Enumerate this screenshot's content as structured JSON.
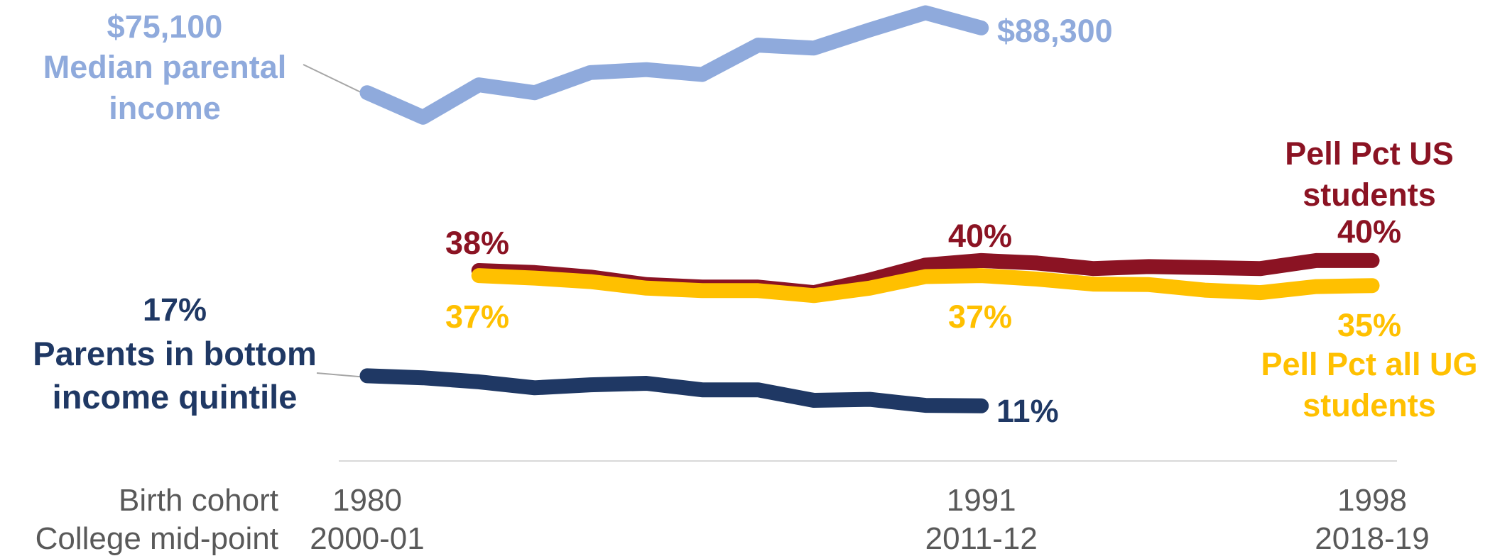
{
  "chart_data": {
    "type": "line",
    "x": [
      1980,
      1981,
      1982,
      1983,
      1984,
      1985,
      1986,
      1987,
      1988,
      1989,
      1990,
      1991,
      1992,
      1993,
      1994,
      1995,
      1996,
      1997,
      1998
    ],
    "xlim": [
      1980,
      1998
    ],
    "xticks": [
      1980,
      1991,
      1998
    ],
    "x_axis_label": "Birth cohort",
    "x2_axis_label": "College mid-point",
    "x2ticks": [
      "2000-01",
      "2011-12",
      "2018-19"
    ],
    "ylim": [
      0,
      94000
    ],
    "y2lim": [
      0,
      92
    ],
    "series": [
      {
        "name": "Median parental income",
        "color": "#8faadc",
        "axis": "y",
        "values": [
          75100,
          70100,
          76700,
          75100,
          79200,
          79800,
          78800,
          84800,
          84200,
          87900,
          91400,
          88300,
          null,
          null,
          null,
          null,
          null,
          null,
          null
        ],
        "value_labels": [
          "$75,100",
          null,
          null,
          null,
          null,
          null,
          null,
          null,
          null,
          null,
          null,
          "$88,300",
          null,
          null,
          null,
          null,
          null,
          null,
          null
        ]
      },
      {
        "name": "Parents in bottom income quintile",
        "color": "#1f3864",
        "axis": "y2",
        "values": [
          17,
          16.6,
          15.8,
          14.6,
          15.2,
          15.5,
          14.2,
          14.2,
          12.1,
          12.3,
          11.1,
          11,
          null,
          null,
          null,
          null,
          null,
          null,
          null
        ],
        "value_labels": [
          "17%",
          null,
          null,
          null,
          null,
          null,
          null,
          null,
          null,
          null,
          null,
          "11%",
          null,
          null,
          null,
          null,
          null,
          null,
          null
        ]
      },
      {
        "name": "Pell Pct US students",
        "color": "#8b1323",
        "axis": "y2",
        "values": [
          null,
          null,
          38,
          37.6,
          36.7,
          35.2,
          34.7,
          34.7,
          33.6,
          36.1,
          39.1,
          40,
          39.5,
          38.4,
          38.8,
          38.6,
          38.4,
          40,
          40
        ],
        "value_labels": [
          null,
          null,
          "38%",
          null,
          null,
          null,
          null,
          null,
          null,
          null,
          null,
          "40%",
          null,
          null,
          null,
          null,
          null,
          null,
          "40%"
        ]
      },
      {
        "name": "Pell Pct all UG students",
        "color": "#ffc000",
        "axis": "y2",
        "values": [
          null,
          null,
          37,
          36.5,
          35.8,
          34.5,
          34,
          34,
          33,
          34.5,
          36.8,
          37,
          36.3,
          35.3,
          35.2,
          34.1,
          33.6,
          34.8,
          35
        ],
        "value_labels": [
          null,
          null,
          "37%",
          null,
          null,
          null,
          null,
          null,
          null,
          null,
          null,
          "37%",
          null,
          null,
          null,
          null,
          null,
          null,
          "35%"
        ]
      }
    ]
  }
}
